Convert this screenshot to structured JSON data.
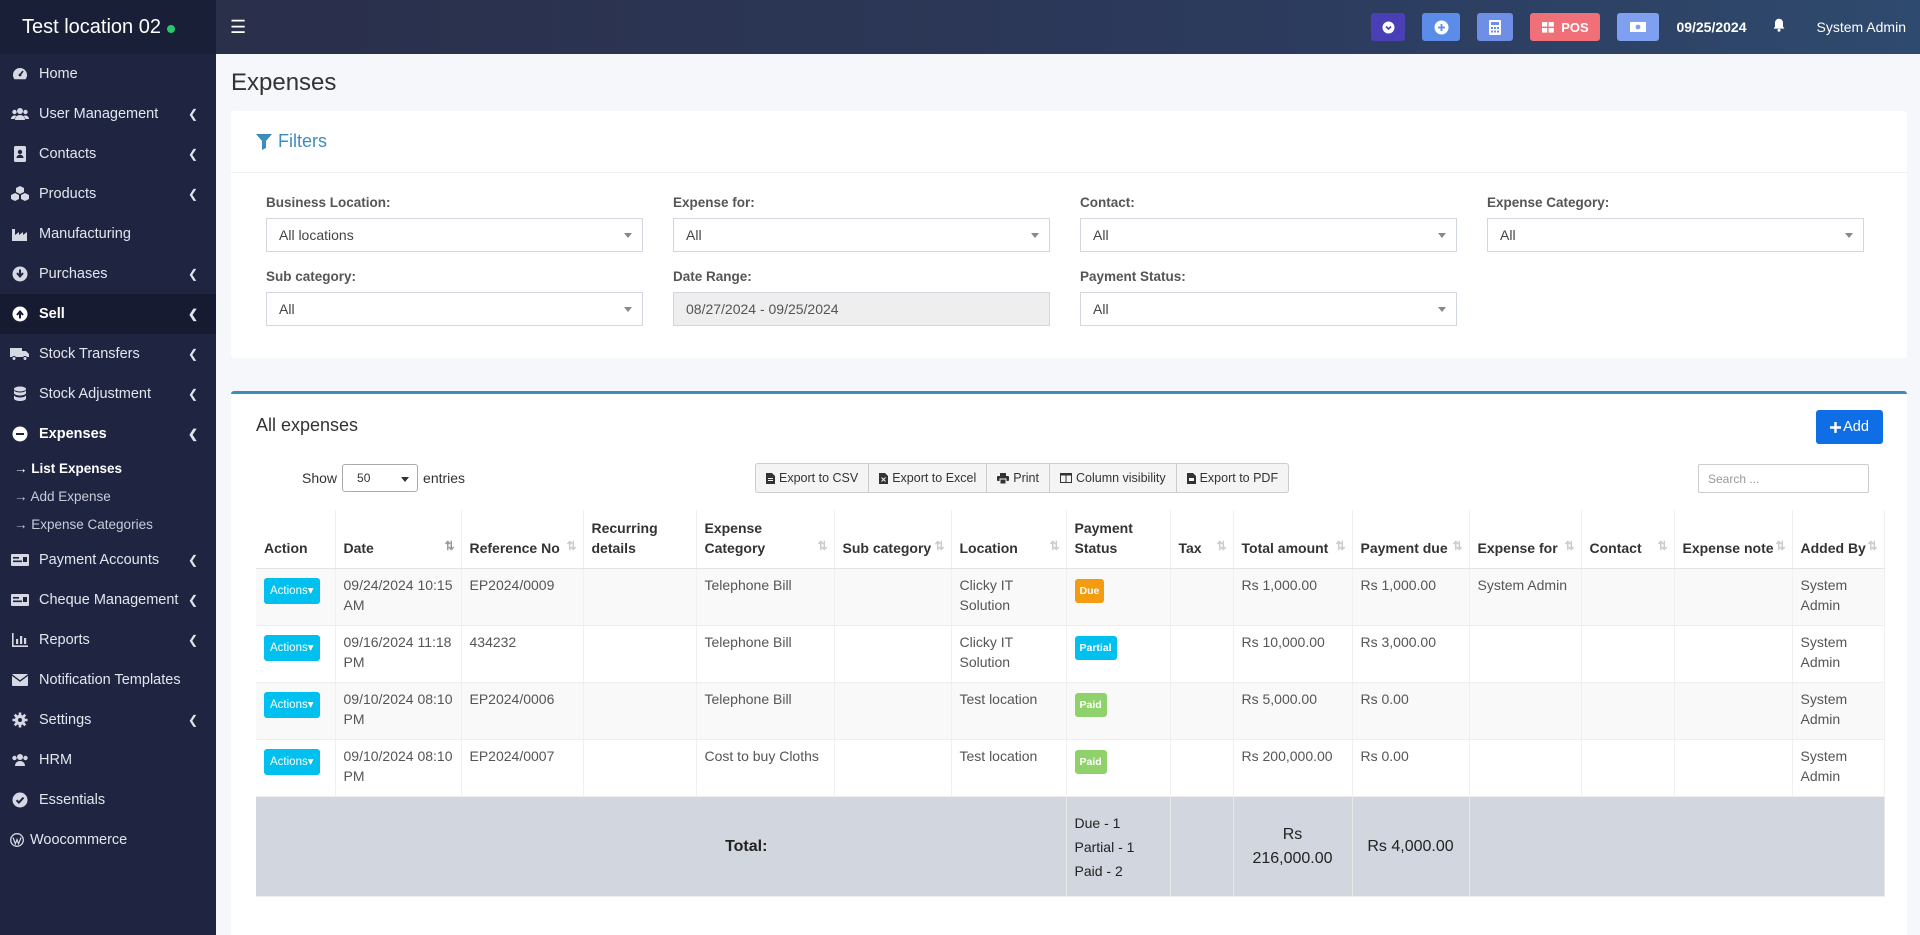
{
  "app": {
    "location_name": "Test location 02",
    "date": "09/25/2024",
    "user": "System Admin",
    "pos_label": "POS"
  },
  "sidebar": {
    "items": [
      {
        "label": "Home",
        "icon": "dashboard-icon"
      },
      {
        "label": "User Management",
        "icon": "users-icon"
      },
      {
        "label": "Contacts",
        "icon": "address-book-icon"
      },
      {
        "label": "Products",
        "icon": "cubes-icon"
      },
      {
        "label": "Manufacturing",
        "icon": "industry-icon"
      },
      {
        "label": "Purchases",
        "icon": "arrow-circle-down-icon"
      },
      {
        "label": "Sell",
        "icon": "arrow-circle-up-icon"
      },
      {
        "label": "Stock Transfers",
        "icon": "truck-icon"
      },
      {
        "label": "Stock Adjustment",
        "icon": "database-icon"
      },
      {
        "label": "Expenses",
        "icon": "minus-circle-icon"
      },
      {
        "label": "Payment Accounts",
        "icon": "money-check-icon"
      },
      {
        "label": "Cheque Management",
        "icon": "money-check-icon"
      },
      {
        "label": "Reports",
        "icon": "bar-chart-icon"
      },
      {
        "label": "Notification Templates",
        "icon": "envelope-icon"
      },
      {
        "label": "Settings",
        "icon": "cog-icon"
      },
      {
        "label": "HRM",
        "icon": "users-icon"
      },
      {
        "label": "Essentials",
        "icon": "check-circle-icon"
      },
      {
        "label": "Woocommerce",
        "icon": "wordpress-icon"
      }
    ],
    "expenses_sub": [
      {
        "label": "→ List Expenses"
      },
      {
        "label": "→ Add Expense"
      },
      {
        "label": "→ Expense Categories"
      }
    ]
  },
  "page": {
    "title": "Expenses"
  },
  "filters": {
    "title": "Filters",
    "business_location": {
      "label": "Business Location:",
      "value": "All locations"
    },
    "expense_for": {
      "label": "Expense for:",
      "value": "All"
    },
    "contact": {
      "label": "Contact:",
      "value": "All"
    },
    "expense_category": {
      "label": "Expense Category:",
      "value": "All"
    },
    "sub_category": {
      "label": "Sub category:",
      "value": "All"
    },
    "date_range": {
      "label": "Date Range:",
      "value": "08/27/2024 - 09/25/2024"
    },
    "payment_status": {
      "label": "Payment Status:",
      "value": "All"
    }
  },
  "expenses_table": {
    "title": "All expenses",
    "add_label": "Add",
    "show_label": "Show",
    "entries_value": "50",
    "entries_label": "entries",
    "search_placeholder": "Search ...",
    "buttons": {
      "csv": "Export to CSV",
      "excel": "Export to Excel",
      "print": "Print",
      "colvis": "Column visibility",
      "pdf": "Export to PDF"
    },
    "columns": {
      "action": "Action",
      "date": "Date",
      "ref": "Reference No",
      "recurring": "Recurring details",
      "category": "Expense Category",
      "subcat": "Sub category",
      "location": "Location",
      "status": "Payment Status",
      "tax": "Tax",
      "total": "Total amount",
      "due": "Payment due",
      "for": "Expense for",
      "contact": "Contact",
      "note": "Expense note",
      "added_by": "Added By"
    },
    "action_label": "Actions",
    "rows": [
      {
        "date": "09/24/2024 10:15 AM",
        "ref": "EP2024/0009",
        "recurring": "",
        "category": "Telephone Bill",
        "subcat": "",
        "location": "Clicky IT Solution",
        "status": "Due",
        "tax": "",
        "total": "Rs 1,000.00",
        "due": "Rs 1,000.00",
        "for": "System Admin",
        "contact": "",
        "note": "",
        "added_by": "System Admin"
      },
      {
        "date": "09/16/2024 11:18 PM",
        "ref": "434232",
        "recurring": "",
        "category": "Telephone Bill",
        "subcat": "",
        "location": "Clicky IT Solution",
        "status": "Partial",
        "tax": "",
        "total": "Rs 10,000.00",
        "due": "Rs 3,000.00",
        "for": "",
        "contact": "",
        "note": "",
        "added_by": "System Admin"
      },
      {
        "date": "09/10/2024 08:10 PM",
        "ref": "EP2024/0006",
        "recurring": "",
        "category": "Telephone Bill",
        "subcat": "",
        "location": "Test location",
        "status": "Paid",
        "tax": "",
        "total": "Rs 5,000.00",
        "due": "Rs 0.00",
        "for": "",
        "contact": "",
        "note": "",
        "added_by": "System Admin"
      },
      {
        "date": "09/10/2024 08:10 PM",
        "ref": "EP2024/0007",
        "recurring": "",
        "category": "Cost to buy Cloths",
        "subcat": "",
        "location": "Test location",
        "status": "Paid",
        "tax": "",
        "total": "Rs 200,000.00",
        "due": "Rs 0.00",
        "for": "",
        "contact": "",
        "note": "",
        "added_by": "System Admin"
      }
    ],
    "footer": {
      "label": "Total:",
      "status_lines": [
        "Due - 1",
        "Partial - 1",
        "Paid - 2"
      ],
      "total_amount": "Rs 216,000.00",
      "total_due": "Rs 4,000.00"
    }
  },
  "colors": {
    "sidebar_bg": "#1f2440",
    "accent": "#3c8dbc",
    "add_button": "#0f6ee6",
    "badge_due": "#f39c12",
    "badge_partial": "#00c0ef",
    "badge_paid": "#8fd16a"
  }
}
